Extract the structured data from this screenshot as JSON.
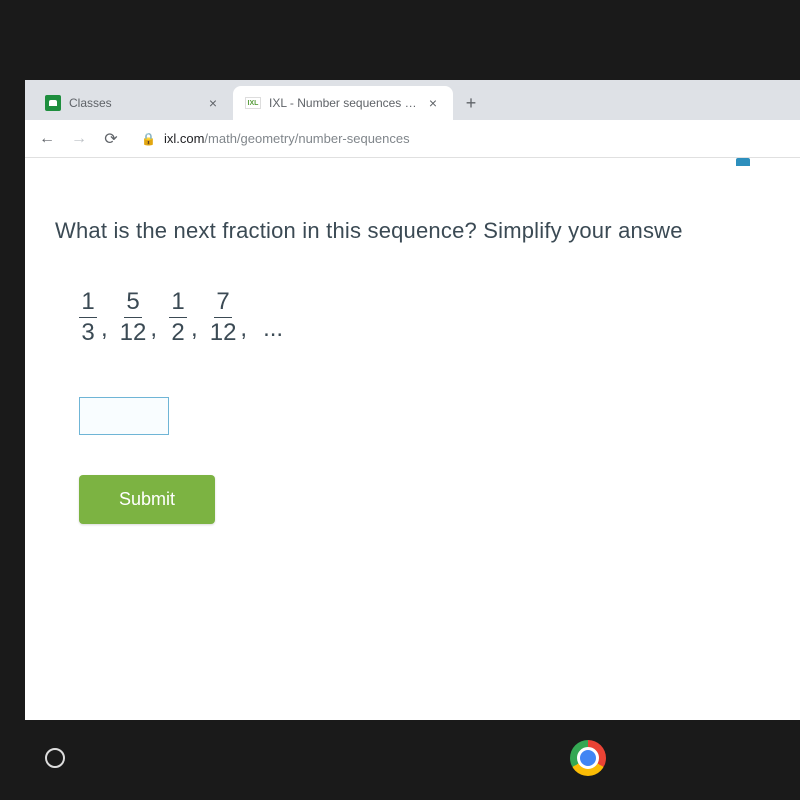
{
  "tabs": [
    {
      "title": "Classes",
      "active": false
    },
    {
      "title": "IXL - Number sequences (Geome",
      "active": true
    }
  ],
  "url": {
    "host": "ixl.com",
    "path": "/math/geometry/number-sequences"
  },
  "question": "What is the next fraction in this sequence? Simplify your answe",
  "sequence": [
    {
      "num": "1",
      "den": "3"
    },
    {
      "num": "5",
      "den": "12"
    },
    {
      "num": "1",
      "den": "2"
    },
    {
      "num": "7",
      "den": "12"
    }
  ],
  "ellipsis": "...",
  "submit_label": "Submit",
  "colors": {
    "submit_bg": "#7cb342",
    "input_border": "#6fb5d6",
    "text": "#3b4a54"
  }
}
